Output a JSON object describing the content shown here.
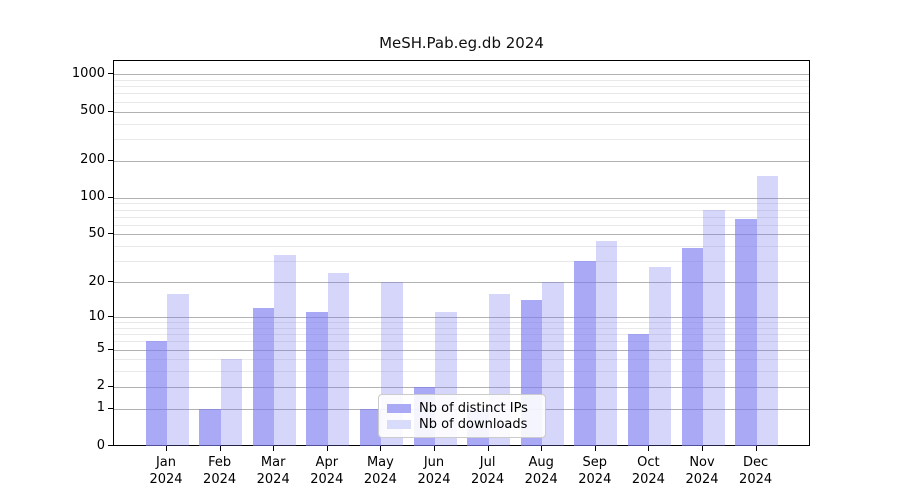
{
  "title": "MeSH.Pab.eg.db 2024",
  "chart_data": {
    "type": "bar",
    "title": "MeSH.Pab.eg.db 2024",
    "categories": [
      "Jan 2024",
      "Feb 2024",
      "Mar 2024",
      "Apr 2024",
      "May 2024",
      "Jun 2024",
      "Jul 2024",
      "Aug 2024",
      "Sep 2024",
      "Oct 2024",
      "Nov 2024",
      "Dec 2024"
    ],
    "series": [
      {
        "name": "Nb of distinct IPs",
        "color": "#a9a9f6",
        "values": [
          6,
          1,
          12,
          11,
          1,
          2,
          1,
          14,
          30,
          7,
          39,
          67
        ]
      },
      {
        "name": "Nb of downloads",
        "color": "#d8dbfa",
        "values": [
          16,
          4,
          34,
          24,
          20,
          11,
          16,
          20,
          44,
          27,
          80,
          150
        ]
      }
    ],
    "xlabel": "",
    "ylabel": "",
    "y_axis": {
      "scale": "log10(value+1)",
      "tick_labels": [
        "0",
        "1",
        "2",
        "5",
        "10",
        "20",
        "50",
        "100",
        "200",
        "500",
        "1000"
      ],
      "ticks": [
        0,
        1,
        2,
        5,
        10,
        20,
        50,
        100,
        200,
        500,
        1000
      ],
      "minor_gridlines": [
        3,
        4,
        6,
        7,
        8,
        9,
        30,
        40,
        60,
        70,
        80,
        90,
        300,
        400,
        600,
        700,
        800,
        900
      ],
      "range_top": 1260
    },
    "grid": true,
    "legend_position": "inside-bottom-center"
  },
  "legend": {
    "items": [
      {
        "label": "Nb of distinct IPs",
        "color": "#a9a9f6"
      },
      {
        "label": "Nb of downloads",
        "color": "#d8dbfa"
      }
    ]
  },
  "colors": {
    "bar_distinct_ips": "#a9a9f6",
    "bar_downloads": "#d8dbfa",
    "gridline_major": "#b1b1b1",
    "gridline_minor": "#e9e9e9",
    "axis": "#000000",
    "background": "#ffffff"
  }
}
